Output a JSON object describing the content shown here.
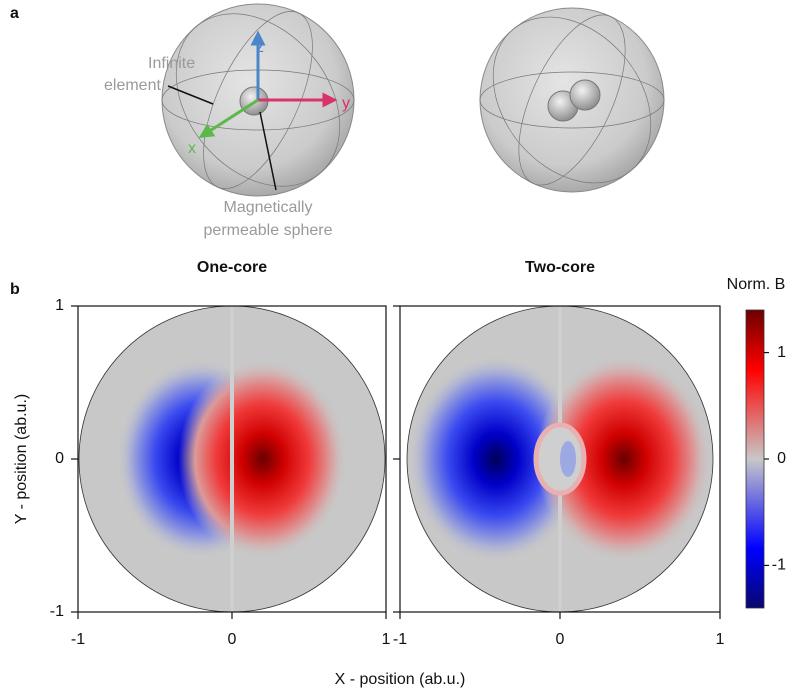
{
  "panel_a": {
    "label": "a",
    "axes": {
      "z": "z",
      "y": "y",
      "x": "x"
    },
    "infinite_element": [
      "Infinite",
      "element"
    ],
    "sphere_label": [
      "Magnetically",
      "permeable sphere"
    ]
  },
  "panel_b": {
    "label": "b"
  },
  "chart_data": [
    {
      "type": "heatmap",
      "title": "One-core",
      "xlabel": "X - position (ab.u.)",
      "ylabel": "Y - position (ab.u.)",
      "xlim": [
        -1,
        1
      ],
      "ylim": [
        -1,
        1
      ],
      "xticks": [
        -1,
        0,
        1
      ],
      "yticks": [
        -1,
        0,
        1
      ]
    },
    {
      "type": "heatmap",
      "title": "Two-core",
      "xlim": [
        -1,
        1
      ],
      "ylim": [
        -1,
        1
      ],
      "xticks": [
        -1,
        0,
        1
      ]
    }
  ],
  "colorbar": {
    "title": "Norm. B",
    "lim": [
      -1.4,
      1.4
    ],
    "ticks": [
      -1,
      0,
      1
    ]
  }
}
